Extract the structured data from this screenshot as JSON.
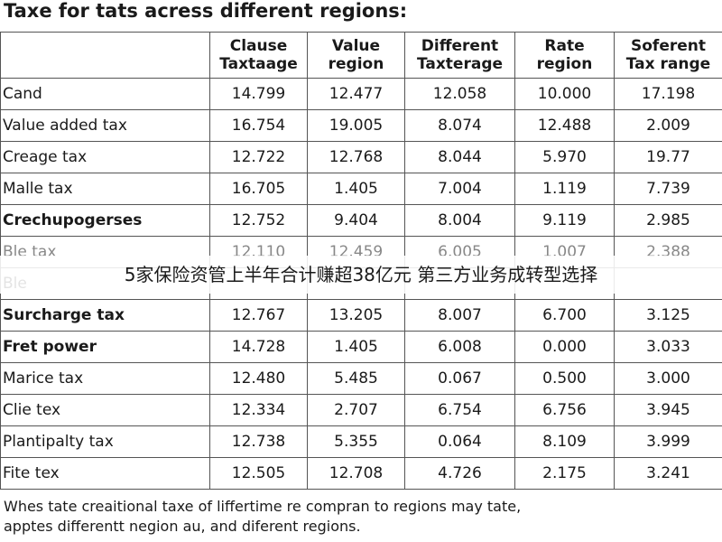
{
  "header": {
    "title": "Taxe for tats acress different regions:"
  },
  "table": {
    "columns": [
      [
        "Clause",
        "Taxtaage"
      ],
      [
        "Value",
        "region"
      ],
      [
        "Different",
        "Taxterage"
      ],
      [
        "Rate",
        "region"
      ],
      [
        "Soferent",
        "Tax range"
      ]
    ],
    "rows": [
      [
        "Cand",
        "14.799",
        "12.477",
        "12.058",
        "10.000",
        "17.198"
      ],
      [
        "Value added tax",
        "16.754",
        "19.005",
        "8.074",
        "12.488",
        "2.009"
      ],
      [
        "Creage tax",
        "12.722",
        "12.768",
        "8.044",
        "5.970",
        "19.77"
      ],
      [
        "Malle tax",
        "16.705",
        "1.405",
        "7.004",
        "1.119",
        "7.739"
      ],
      [
        "Crechupogerses",
        "12.752",
        "9.404",
        "8.004",
        "9.119",
        "2.985"
      ],
      [
        "Ble tax",
        "12.110",
        "12.459",
        "6.005",
        "1.007",
        "2.388"
      ],
      [
        "Ble"
      ],
      [
        "Surcharge tax",
        "12.767",
        "13.205",
        "8.007",
        "6.700",
        "3.125"
      ],
      [
        "Fret power",
        "14.728",
        "1.405",
        "6.008",
        "0.000",
        "3.033"
      ],
      [
        "Marice tax",
        "12.480",
        "5.485",
        "0.067",
        "0.500",
        "3.000"
      ],
      [
        "Clie tex",
        "12.334",
        "2.707",
        "6.754",
        "6.756",
        "3.945"
      ],
      [
        "Plantipalty tax",
        "12.738",
        "5.355",
        "0.064",
        "8.109",
        "3.999"
      ],
      [
        "Fite tex",
        "12.505",
        "12.708",
        "4.726",
        "2.175",
        "3.241"
      ]
    ]
  },
  "banner": "5家保险资管上半年合计赚超38亿元 第三方业务成转型选择",
  "footnote": [
    "Whes tate creaitional taxe of liffertime re compran to regions may tate,",
    "apptes differentt negion au, and diferent regions."
  ]
}
